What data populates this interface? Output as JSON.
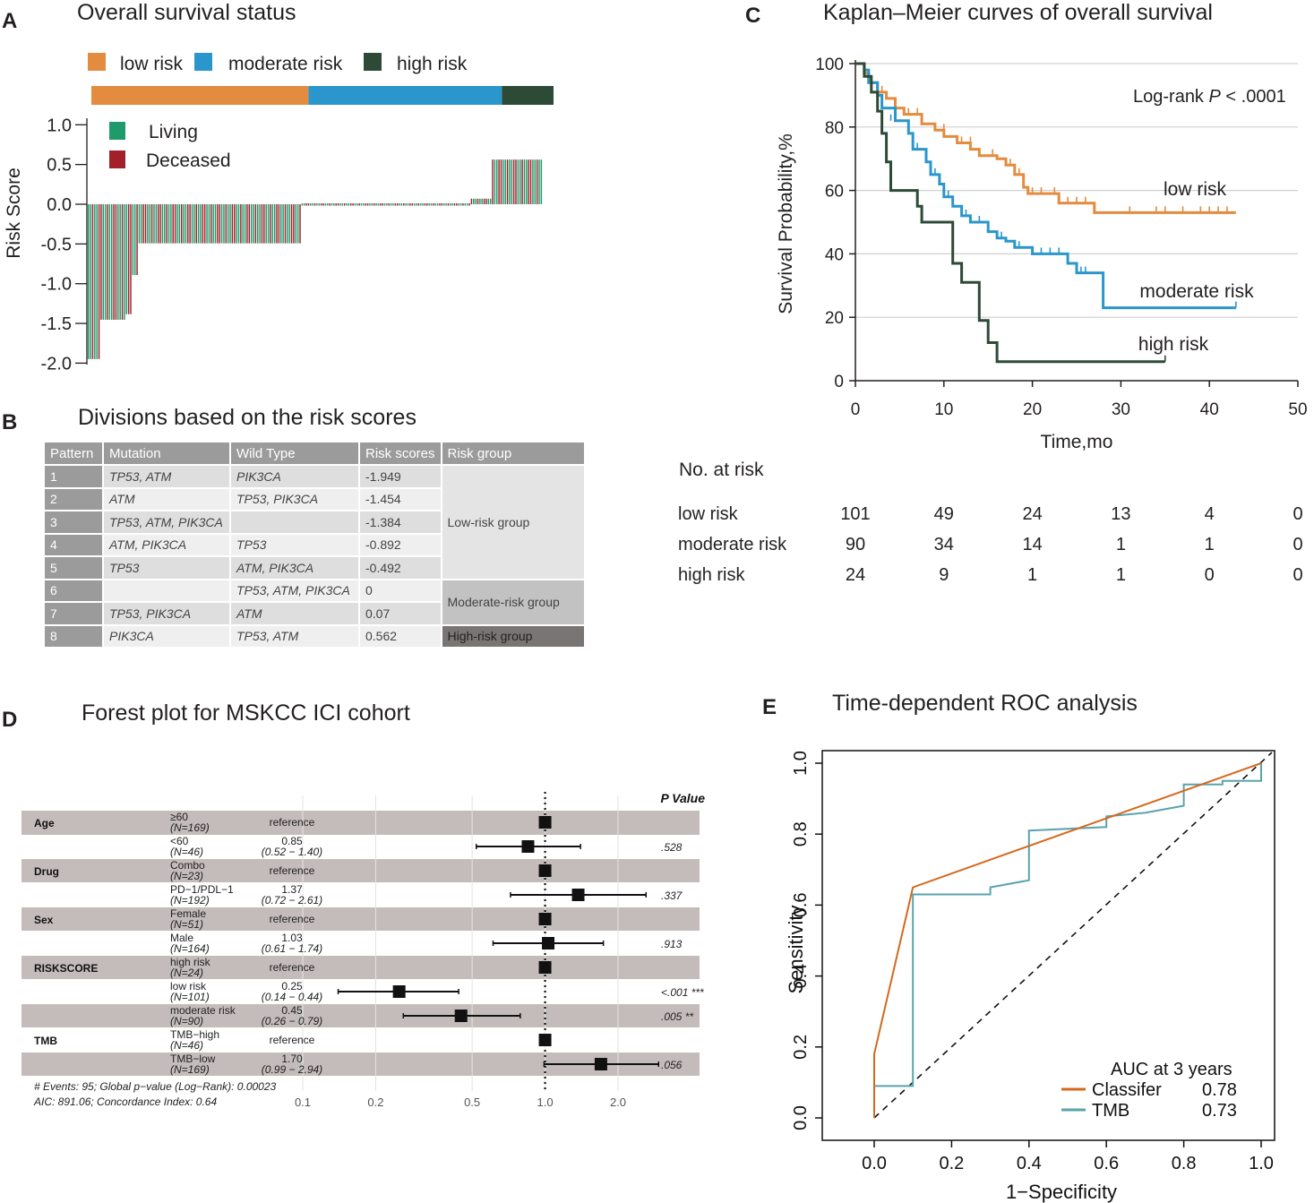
{
  "panels": {
    "A": {
      "letter": "A",
      "title": "Overall survival status"
    },
    "B": {
      "letter": "B",
      "title": "Divisions based on the risk scores"
    },
    "C": {
      "letter": "C",
      "title": "Kaplan–Meier curves of overall survival"
    },
    "D": {
      "letter": "D",
      "title": "Forest plot  for MSKCC ICI cohort"
    },
    "E": {
      "letter": "E",
      "title": "Time-dependent ROC analysis"
    }
  },
  "colors": {
    "low": "#e38b3e",
    "moderate": "#2a96cc",
    "high": "#2d4a37",
    "living": "#1f9a6a",
    "deceased": "#a1202a",
    "roc_classifier": "#d4691e",
    "roc_tmb": "#5ba3ad"
  },
  "chart_data": [
    {
      "id": "A",
      "type": "bar",
      "title": "Overall survival status",
      "ylabel": "Risk Score",
      "ylim": [
        -2.0,
        1.0
      ],
      "yticks": [
        "1.0",
        "0.5",
        "0.0",
        "-0.5",
        "-1.0",
        "-1.5",
        "-2.0"
      ],
      "group_legend": [
        {
          "name": "low risk",
          "color": "#e38b3e"
        },
        {
          "name": "moderate risk",
          "color": "#2a96cc"
        },
        {
          "name": "high risk",
          "color": "#2d4a37"
        }
      ],
      "group_counts": [
        101,
        90,
        24
      ],
      "status_legend": [
        {
          "name": "Living",
          "color": "#1f9a6a"
        },
        {
          "name": "Deceased",
          "color": "#a1202a"
        }
      ],
      "segments": [
        {
          "count": 6,
          "value": -1.949
        },
        {
          "count": 12,
          "value": -1.454
        },
        {
          "count": 3,
          "value": -1.384
        },
        {
          "count": 3,
          "value": -0.892
        },
        {
          "count": 77,
          "value": -0.492
        },
        {
          "count": 80,
          "value": 0
        },
        {
          "count": 10,
          "value": 0.07
        },
        {
          "count": 24,
          "value": 0.562
        }
      ]
    },
    {
      "id": "C",
      "type": "line",
      "title": "Kaplan–Meier curves of overall survival",
      "xlabel": "Time,mo",
      "ylabel": "Survival Probability,%",
      "xlim": [
        0,
        50
      ],
      "ylim": [
        0,
        100
      ],
      "xticks": [
        "0",
        "10",
        "20",
        "30",
        "40",
        "50"
      ],
      "yticks": [
        "0",
        "20",
        "40",
        "60",
        "80",
        "100"
      ],
      "annotation": {
        "prefix": "Log-rank ",
        "p": "P",
        "suffix": " < .0001"
      },
      "series": [
        {
          "name": "low risk",
          "color": "#e38b3e",
          "steps": [
            [
              0,
              100
            ],
            [
              1,
              97
            ],
            [
              1.5,
              94
            ],
            [
              2.5,
              91
            ],
            [
              3.5,
              89
            ],
            [
              4.5,
              86
            ],
            [
              5.5,
              84
            ],
            [
              7.5,
              81
            ],
            [
              9,
              79
            ],
            [
              10,
              77
            ],
            [
              11.5,
              75
            ],
            [
              13,
              73
            ],
            [
              14,
              71
            ],
            [
              16,
              70
            ],
            [
              17,
              68
            ],
            [
              18,
              65
            ],
            [
              19,
              61
            ],
            [
              19.5,
              59
            ],
            [
              23,
              56
            ],
            [
              27,
              53
            ],
            [
              43,
              53
            ]
          ],
          "censors": [
            [
              3,
              91
            ],
            [
              6,
              84
            ],
            [
              7,
              84
            ],
            [
              10,
              79
            ],
            [
              12,
              75
            ],
            [
              13,
              75
            ],
            [
              15.5,
              71
            ],
            [
              17.5,
              68
            ],
            [
              18.5,
              65
            ],
            [
              20,
              59
            ],
            [
              21,
              59
            ],
            [
              22.5,
              59
            ],
            [
              24,
              56
            ],
            [
              25,
              56
            ],
            [
              26,
              56
            ],
            [
              31,
              53
            ],
            [
              34,
              53
            ],
            [
              35,
              53
            ],
            [
              37,
              53
            ],
            [
              39,
              53
            ],
            [
              40,
              53
            ],
            [
              41,
              53
            ],
            [
              42,
              53
            ]
          ]
        },
        {
          "name": "moderate risk",
          "color": "#2a96cc",
          "steps": [
            [
              0,
              100
            ],
            [
              1,
              98
            ],
            [
              1.5,
              94
            ],
            [
              2.5,
              90
            ],
            [
              3,
              86
            ],
            [
              4.5,
              82
            ],
            [
              6,
              78
            ],
            [
              6.5,
              73
            ],
            [
              8,
              69
            ],
            [
              8.5,
              65
            ],
            [
              9.5,
              62
            ],
            [
              10,
              58
            ],
            [
              11,
              55
            ],
            [
              12,
              52
            ],
            [
              13,
              50
            ],
            [
              15,
              47
            ],
            [
              16,
              45
            ],
            [
              17,
              44
            ],
            [
              18,
              42
            ],
            [
              20,
              40
            ],
            [
              24,
              37
            ],
            [
              25,
              34
            ],
            [
              28,
              23
            ],
            [
              43,
              23
            ]
          ],
          "censors": [
            [
              3,
              86
            ],
            [
              4,
              82
            ],
            [
              7,
              73
            ],
            [
              9,
              65
            ],
            [
              10.5,
              58
            ],
            [
              12.5,
              52
            ],
            [
              14,
              50
            ],
            [
              16.5,
              45
            ],
            [
              18.5,
              42
            ],
            [
              21,
              40
            ],
            [
              22,
              40
            ],
            [
              23,
              40
            ],
            [
              25.5,
              34
            ],
            [
              26,
              34
            ],
            [
              43,
              23
            ]
          ]
        },
        {
          "name": "high risk",
          "color": "#2d4a37",
          "steps": [
            [
              0,
              100
            ],
            [
              1,
              96
            ],
            [
              1.8,
              91
            ],
            [
              2.5,
              85
            ],
            [
              3,
              78
            ],
            [
              3.5,
              69
            ],
            [
              4,
              60
            ],
            [
              7,
              55
            ],
            [
              7.5,
              50
            ],
            [
              11,
              37
            ],
            [
              12,
              31
            ],
            [
              14,
              19
            ],
            [
              15,
              12
            ],
            [
              16,
              6
            ],
            [
              35,
              6
            ]
          ],
          "censors": [
            [
              35,
              6
            ]
          ]
        }
      ],
      "risk_table": {
        "title": "No. at risk",
        "time_points": [
          0,
          10,
          20,
          30,
          40,
          50
        ],
        "rows": [
          {
            "label": "low risk",
            "values": [
              "101",
              "49",
              "24",
              "13",
              "4",
              "0"
            ]
          },
          {
            "label": "moderate risk",
            "values": [
              "90",
              "34",
              "14",
              "1",
              "1",
              "0"
            ]
          },
          {
            "label": "high risk",
            "values": [
              "24",
              "9",
              "1",
              "1",
              "0",
              "0"
            ]
          }
        ]
      }
    },
    {
      "id": "D",
      "type": "scatter",
      "title": "Forest plot  for MSKCC ICI cohort",
      "x_scale": "log",
      "xticks": [
        "0.1",
        "0.2",
        "0.5",
        "1.0",
        "2.0"
      ],
      "xtick_values": [
        0.1,
        0.2,
        0.5,
        1.0,
        2.0
      ],
      "reference_line": 1.0,
      "p_header": "P Value",
      "rows": [
        {
          "variable": "Age",
          "level": "≥60",
          "n": "(N=169)",
          "hr": 1.0,
          "hr_text": "reference",
          "ci_text": "",
          "lo": null,
          "hi": null,
          "p": ""
        },
        {
          "variable": "",
          "level": "<60",
          "n": "(N=46)",
          "hr": 0.85,
          "hr_text": "0.85",
          "ci_text": "(0.52 − 1.40)",
          "lo": 0.52,
          "hi": 1.4,
          "p": ".528"
        },
        {
          "variable": "Drug",
          "level": "Combo",
          "n": "(N=23)",
          "hr": 1.0,
          "hr_text": "reference",
          "ci_text": "",
          "lo": null,
          "hi": null,
          "p": ""
        },
        {
          "variable": "",
          "level": "PD−1/PDL−1",
          "n": "(N=192)",
          "hr": 1.37,
          "hr_text": "1.37",
          "ci_text": "(0.72 − 2.61)",
          "lo": 0.72,
          "hi": 2.61,
          "p": ".337"
        },
        {
          "variable": "Sex",
          "level": "Female",
          "n": "(N=51)",
          "hr": 1.0,
          "hr_text": "reference",
          "ci_text": "",
          "lo": null,
          "hi": null,
          "p": ""
        },
        {
          "variable": "",
          "level": "Male",
          "n": "(N=164)",
          "hr": 1.03,
          "hr_text": "1.03",
          "ci_text": "(0.61 − 1.74)",
          "lo": 0.61,
          "hi": 1.74,
          "p": ".913"
        },
        {
          "variable": "RISKSCORE",
          "level": "high risk",
          "n": "(N=24)",
          "hr": 1.0,
          "hr_text": "reference",
          "ci_text": "",
          "lo": null,
          "hi": null,
          "p": ""
        },
        {
          "variable": "",
          "level": "low risk",
          "n": "(N=101)",
          "hr": 0.25,
          "hr_text": "0.25",
          "ci_text": "(0.14 − 0.44)",
          "lo": 0.14,
          "hi": 0.44,
          "p": "<.001 ***"
        },
        {
          "variable": "",
          "level": "moderate risk",
          "n": "(N=90)",
          "hr": 0.45,
          "hr_text": "0.45",
          "ci_text": "(0.26 − 0.79)",
          "lo": 0.26,
          "hi": 0.79,
          "p": ".005 **"
        },
        {
          "variable": "TMB",
          "level": "TMB−high",
          "n": "(N=46)",
          "hr": 1.0,
          "hr_text": "reference",
          "ci_text": "",
          "lo": null,
          "hi": null,
          "p": ""
        },
        {
          "variable": "",
          "level": "TMB−low",
          "n": "(N=169)",
          "hr": 1.7,
          "hr_text": "1.70",
          "ci_text": "(0.99 − 2.94)",
          "lo": 0.99,
          "hi": 2.94,
          "p": ".056"
        }
      ],
      "footer": [
        "# Events: 95; Global p−value (Log−Rank): 0.00023",
        "AIC: 891.06; Concordance Index: 0.64"
      ]
    },
    {
      "id": "E",
      "type": "line",
      "title": "Time-dependent ROC analysis",
      "xlabel": "1−Specificity",
      "ylabel": "Sensitivity",
      "xlim": [
        0,
        1
      ],
      "ylim": [
        0,
        1
      ],
      "xticks": [
        "0.0",
        "0.2",
        "0.4",
        "0.6",
        "0.8",
        "1.0"
      ],
      "yticks": [
        "0.0",
        "0.2",
        "0.4",
        "0.6",
        "0.8",
        "1.0"
      ],
      "legend_title": "AUC at 3 years",
      "series": [
        {
          "name": "Classifer",
          "auc": "0.78",
          "color": "#d4691e",
          "points": [
            [
              0,
              0
            ],
            [
              0,
              0.18
            ],
            [
              0.1,
              0.65
            ],
            [
              1.0,
              1.0
            ]
          ]
        },
        {
          "name": "TMB",
          "auc": "0.73",
          "color": "#5ba3ad",
          "points": [
            [
              0,
              0
            ],
            [
              0,
              0.09
            ],
            [
              0.1,
              0.09
            ],
            [
              0.1,
              0.63
            ],
            [
              0.3,
              0.63
            ],
            [
              0.3,
              0.65
            ],
            [
              0.4,
              0.67
            ],
            [
              0.4,
              0.81
            ],
            [
              0.6,
              0.82
            ],
            [
              0.6,
              0.85
            ],
            [
              0.7,
              0.86
            ],
            [
              0.8,
              0.88
            ],
            [
              0.8,
              0.94
            ],
            [
              0.9,
              0.94
            ],
            [
              0.9,
              0.95
            ],
            [
              1.0,
              0.95
            ],
            [
              1.0,
              1.0
            ]
          ]
        }
      ],
      "diagonal": [
        [
          0,
          0
        ],
        [
          1,
          1
        ]
      ]
    }
  ],
  "table": {
    "headers": [
      "Pattern",
      "Mutation",
      "Wild Type",
      "Risk scores",
      "Risk group"
    ],
    "rows": [
      {
        "pattern": "1",
        "mutation": "TP53, ATM",
        "wild": "PIK3CA",
        "score": "-1.949"
      },
      {
        "pattern": "2",
        "mutation": "ATM",
        "wild": "TP53, PIK3CA",
        "score": "-1.454"
      },
      {
        "pattern": "3",
        "mutation": "TP53, ATM, PIK3CA",
        "wild": "",
        "score": "-1.384"
      },
      {
        "pattern": "4",
        "mutation": "ATM, PIK3CA",
        "wild": "TP53",
        "score": "-0.892"
      },
      {
        "pattern": "5",
        "mutation": "TP53",
        "wild": "ATM, PIK3CA",
        "score": "-0.492"
      },
      {
        "pattern": "6",
        "mutation": "",
        "wild": "TP53, ATM, PIK3CA",
        "score": "0"
      },
      {
        "pattern": "7",
        "mutation": "TP53, PIK3CA",
        "wild": "ATM",
        "score": "0.07"
      },
      {
        "pattern": "8",
        "mutation": "PIK3CA",
        "wild": "TP53, ATM",
        "score": "0.562"
      }
    ],
    "groups": [
      {
        "label": "Low-risk group",
        "span": 5
      },
      {
        "label": "Moderate-risk group",
        "span": 2
      },
      {
        "label": "High-risk group",
        "span": 1
      }
    ]
  }
}
